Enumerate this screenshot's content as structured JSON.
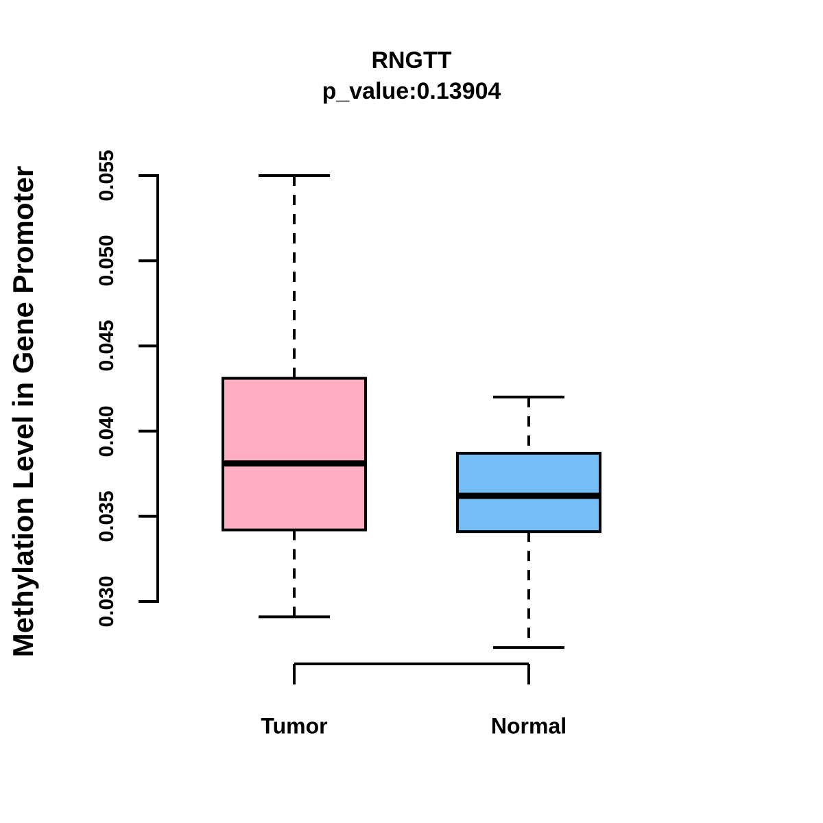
{
  "title": "RNGTT",
  "subtitle": "p_value:0.13904",
  "p_value": 0.13904,
  "y_axis_title": "Methylation Level in Gene Promoter",
  "colors": {
    "tumor_fill": "#FFAEC1",
    "normal_fill": "#74BEF5",
    "stroke": "#000000",
    "background": "#FFFFFF"
  },
  "chart_data": {
    "type": "boxplot",
    "orientation": "vertical",
    "title": "RNGTT",
    "subtitle": "p_value:0.13904",
    "ylabel": "Methylation Level in Gene Promoter",
    "xlabel": "",
    "categories": [
      "Tumor",
      "Normal"
    ],
    "ytick_values": [
      0.03,
      0.035,
      0.04,
      0.045,
      0.05,
      0.055
    ],
    "ytick_labels": [
      "0.030",
      "0.035",
      "0.040",
      "0.045",
      "0.050",
      "0.055"
    ],
    "ylim": [
      0.0272,
      0.0552
    ],
    "grid": false,
    "legend": "none",
    "series": [
      {
        "name": "Tumor",
        "lower_whisker": 0.0291,
        "q1": 0.0342,
        "median": 0.0381,
        "q3": 0.0431,
        "upper_whisker": 0.055,
        "fill": "#FFAEC1"
      },
      {
        "name": "Normal",
        "lower_whisker": 0.0273,
        "q1": 0.0341,
        "median": 0.0362,
        "q3": 0.0387,
        "upper_whisker": 0.042,
        "fill": "#74BEF5"
      }
    ]
  }
}
